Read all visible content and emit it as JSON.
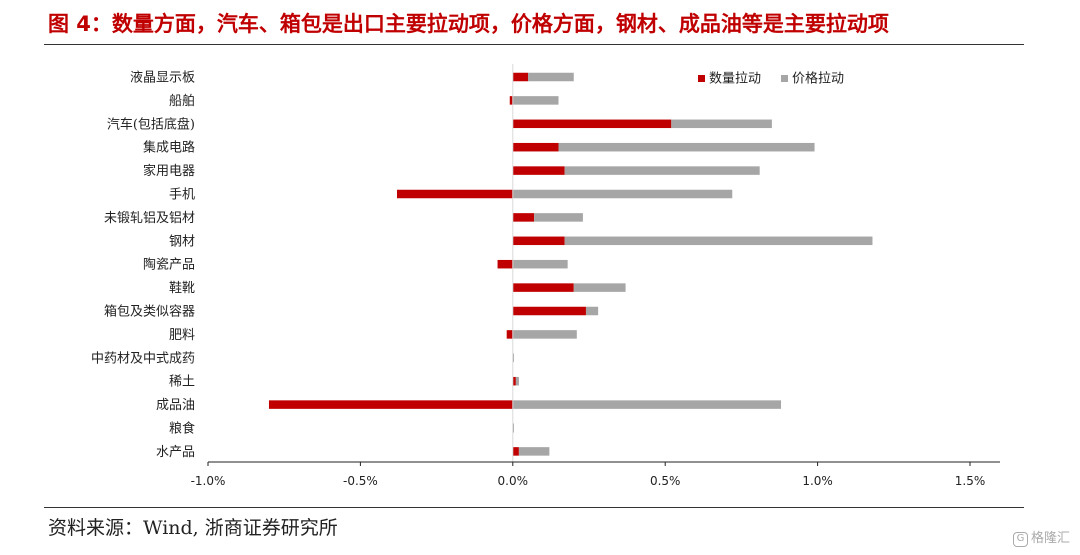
{
  "title": "图 4：数量方面，汽车、箱包是出口主要拉动项，价格方面，钢材、成品油等是主要拉动项",
  "source": "资料来源：Wind, 浙商证券研究所",
  "watermark": {
    "text": "格隆汇",
    "icon": "glh-logo-icon"
  },
  "colors": {
    "title": "#c00000",
    "quantity": "#c00000",
    "price": "#a6a6a6"
  },
  "chart_data": {
    "type": "bar",
    "orientation": "horizontal",
    "stacked": true,
    "categories": [
      "液晶显示板",
      "船舶",
      "汽车(包括底盘)",
      "集成电路",
      "家用电器",
      "手机",
      "未锻轧铝及铝材",
      "钢材",
      "陶瓷产品",
      "鞋靴",
      "箱包及类似容器",
      "肥料",
      "中药材及中式成药",
      "稀土",
      "成品油",
      "粮食",
      "水产品"
    ],
    "series": [
      {
        "name": "数量拉动",
        "color": "#c00000",
        "values": [
          0.05,
          -0.01,
          0.52,
          0.15,
          0.17,
          -0.38,
          0.07,
          0.17,
          -0.05,
          0.2,
          0.24,
          -0.02,
          0.0,
          0.01,
          -0.8,
          0.0,
          0.02
        ]
      },
      {
        "name": "价格拉动",
        "color": "#a6a6a6",
        "values": [
          0.15,
          0.15,
          0.33,
          0.84,
          0.64,
          0.72,
          0.16,
          1.01,
          0.18,
          0.17,
          0.04,
          0.21,
          0.0,
          0.01,
          0.88,
          0.0,
          0.1
        ]
      }
    ],
    "xlim": [
      -1.0,
      1.5
    ],
    "xticks": [
      -1.0,
      -0.5,
      0.0,
      0.5,
      1.0,
      1.5
    ],
    "tick_labels": [
      "-1.0%",
      "-0.5%",
      "0.0%",
      "0.5%",
      "1.0%",
      "1.5%"
    ],
    "xlabel": "",
    "ylabel": "",
    "grid": false,
    "legend_position": "top-right"
  }
}
